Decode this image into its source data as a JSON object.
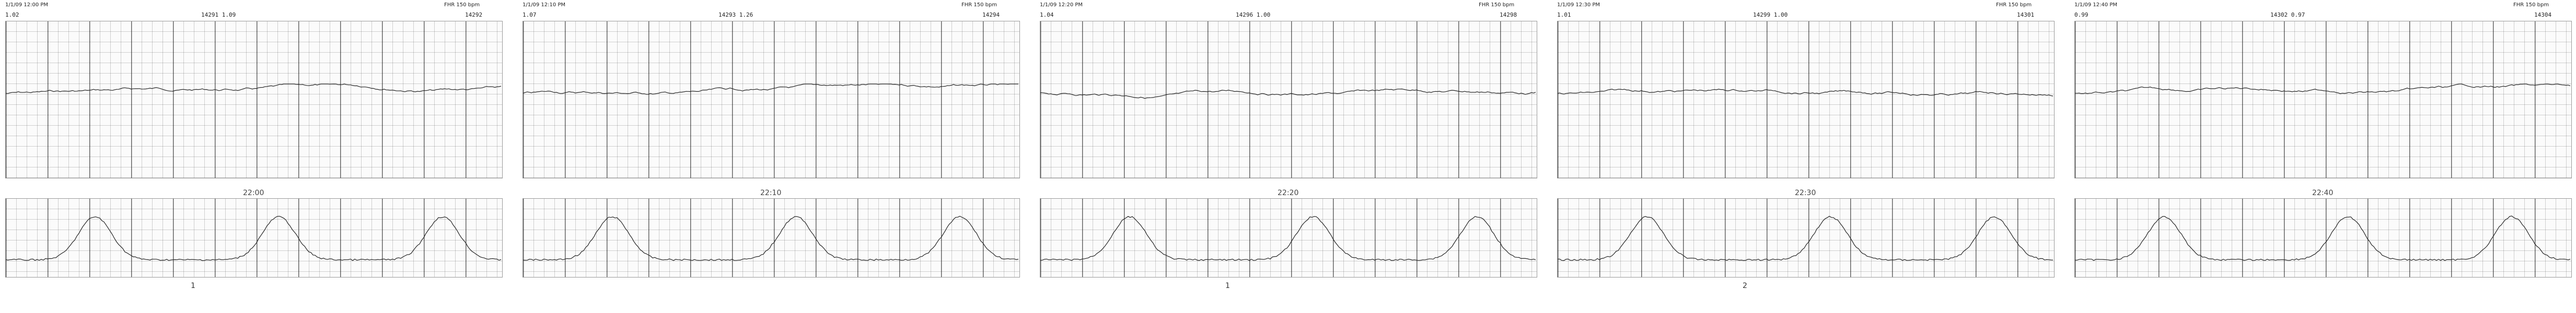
{
  "top_strips": [
    {
      "seq": "1.02",
      "counter": "14291",
      "page": "1.09",
      "right_counter": "14292",
      "header_left": "1/1/09 12:00 PM",
      "header_right": "FHR 150 bpm"
    },
    {
      "seq": "1.07",
      "counter": "14293",
      "page": "1.26",
      "right_counter": "14294",
      "header_left": "1/1/09 12:10 PM",
      "header_right": "FHR 150 bpm"
    },
    {
      "seq": "1.04",
      "counter": "14296",
      "page": "1.00",
      "right_counter": "14298",
      "header_left": "1/1/09 12:20 PM",
      "header_right": "FHR 150 bpm"
    },
    {
      "seq": "1.01",
      "counter": "14299",
      "page": "1.00",
      "right_counter": "14301",
      "header_left": "1/1/09 12:30 PM",
      "header_right": "FHR 150 bpm"
    },
    {
      "seq": "0.99",
      "counter": "14302",
      "page": "0.97",
      "right_counter": "14304",
      "header_left": "1/1/09 12:40 PM",
      "header_right": "FHR 150 bpm"
    }
  ],
  "bottom_strips": [
    {
      "time": "22:00",
      "mark": "1"
    },
    {
      "time": "22:10",
      "mark": ""
    },
    {
      "time": "22:20",
      "mark": "1"
    },
    {
      "time": "22:30",
      "mark": "2"
    },
    {
      "time": "22:40",
      "mark": ""
    }
  ],
  "colors": {
    "grid": "#555555",
    "trace": "#222222",
    "background": "#fbfbfb"
  }
}
